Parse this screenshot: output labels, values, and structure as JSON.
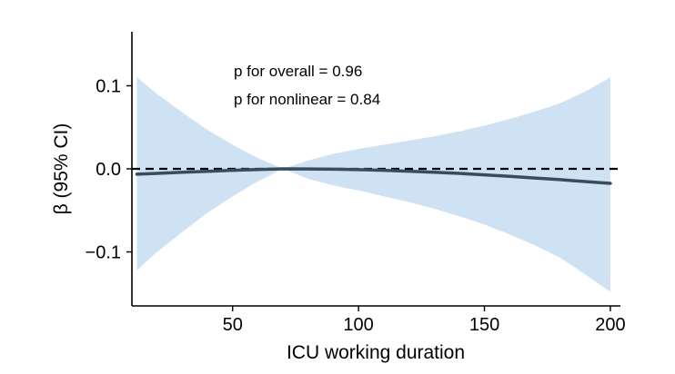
{
  "chart_data": {
    "type": "line",
    "title": "",
    "xlabel": "ICU working duration",
    "ylabel": "β (95% CI)",
    "xlim": [
      10,
      204
    ],
    "ylim": [
      -0.165,
      0.165
    ],
    "xticks": [
      50,
      100,
      150,
      200
    ],
    "yticks": [
      0.1,
      0.0,
      -0.1
    ],
    "ytick_labels": [
      "0.1",
      "0.0",
      "−0.1"
    ],
    "grid": false,
    "reference_line": {
      "y": 0,
      "style": "dashed",
      "color": "#000000"
    },
    "annotations": [
      "p for overall = 0.96",
      "p for nonlinear = 0.84"
    ],
    "series": [
      {
        "role": "estimate",
        "color": "#3a4b5c",
        "x": [
          12,
          20,
          30,
          40,
          50,
          60,
          70,
          80,
          90,
          100,
          110,
          120,
          130,
          140,
          150,
          160,
          170,
          180,
          190,
          200
        ],
        "y": [
          -0.0065,
          -0.0055,
          -0.0042,
          -0.003,
          -0.0018,
          -0.0008,
          0.0,
          -0.0001,
          -0.0004,
          -0.001,
          -0.0018,
          -0.0028,
          -0.004,
          -0.0055,
          -0.0072,
          -0.009,
          -0.011,
          -0.013,
          -0.0153,
          -0.0175
        ]
      },
      {
        "role": "ci_upper",
        "color": "#cfe2f3",
        "x": [
          12,
          20,
          30,
          40,
          50,
          60,
          70,
          80,
          90,
          100,
          110,
          120,
          130,
          140,
          150,
          160,
          170,
          180,
          190,
          200
        ],
        "y": [
          0.11,
          0.09,
          0.068,
          0.047,
          0.029,
          0.013,
          0.0,
          0.01,
          0.018,
          0.024,
          0.029,
          0.034,
          0.039,
          0.045,
          0.052,
          0.06,
          0.069,
          0.079,
          0.093,
          0.11
        ]
      },
      {
        "role": "ci_lower",
        "color": "#cfe2f3",
        "x": [
          12,
          20,
          30,
          40,
          50,
          60,
          70,
          80,
          90,
          100,
          110,
          120,
          130,
          140,
          150,
          160,
          170,
          180,
          190,
          200
        ],
        "y": [
          -0.122,
          -0.1,
          -0.076,
          -0.053,
          -0.033,
          -0.015,
          0.0,
          -0.012,
          -0.02,
          -0.026,
          -0.033,
          -0.04,
          -0.048,
          -0.057,
          -0.067,
          -0.079,
          -0.092,
          -0.107,
          -0.127,
          -0.148
        ]
      }
    ]
  }
}
